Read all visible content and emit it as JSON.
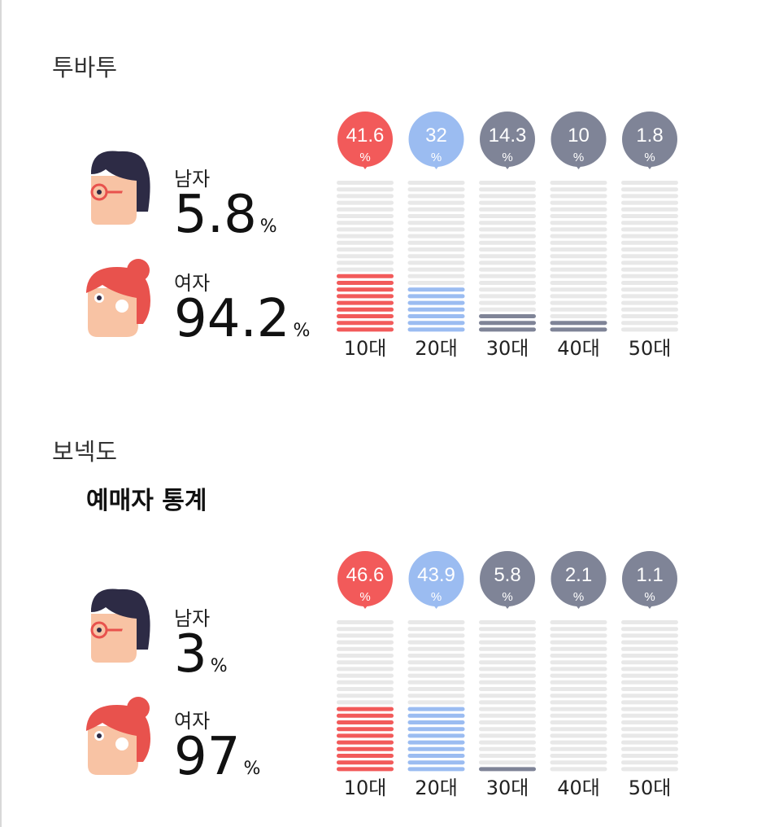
{
  "colors": {
    "red": "#f25a5a",
    "blue": "#9bbcf1",
    "gray": "#7f8497",
    "empty": "#e8e8e8",
    "hair_male": "#2d2b45",
    "hair_female": "#e8524d",
    "skin": "#f8c3a4"
  },
  "sections": [
    {
      "artist": "투바투",
      "male": {
        "label": "남자",
        "value": "5.8",
        "unit": "%"
      },
      "female": {
        "label": "여자",
        "value": "94.2",
        "unit": "%"
      }
    },
    {
      "artist": "보넥도",
      "stats_title": "예매자 통계",
      "male": {
        "label": "남자",
        "value": "3",
        "unit": "%"
      },
      "female": {
        "label": "여자",
        "value": "97",
        "unit": "%"
      }
    }
  ],
  "chart_data": [
    {
      "type": "bar",
      "categories": [
        "10대",
        "20대",
        "30대",
        "40대",
        "50대"
      ],
      "values": [
        41.6,
        32,
        14.3,
        10,
        1.8
      ],
      "value_unit": "%",
      "colors": [
        "#f25a5a",
        "#9bbcf1",
        "#7f8497",
        "#7f8497",
        "#7f8497"
      ],
      "filled_segments": [
        9,
        7,
        3,
        2,
        0
      ],
      "total_segments": 23
    },
    {
      "type": "bar",
      "categories": [
        "10대",
        "20대",
        "30대",
        "40대",
        "50대"
      ],
      "values": [
        46.6,
        43.9,
        5.8,
        2.1,
        1.1
      ],
      "value_unit": "%",
      "colors": [
        "#f25a5a",
        "#9bbcf1",
        "#7f8497",
        "#7f8497",
        "#7f8497"
      ],
      "filled_segments": [
        10,
        10,
        1,
        0,
        0
      ],
      "total_segments": 23
    }
  ]
}
